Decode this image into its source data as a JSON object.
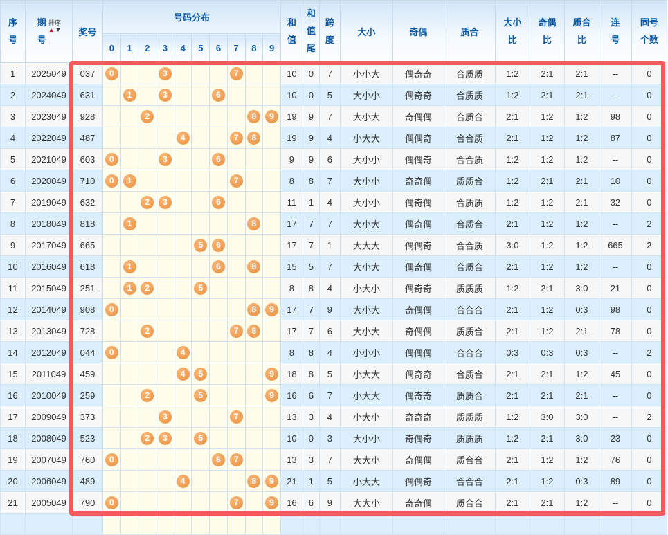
{
  "header": {
    "col_xuhao": "序号",
    "col_qihao": "期号",
    "sort_label": "排序",
    "sort_asc": "▲",
    "sort_desc": "▼",
    "col_jianghao": "奖号",
    "col_distribution": "号码分布",
    "digits": [
      "0",
      "1",
      "2",
      "3",
      "4",
      "5",
      "6",
      "7",
      "8",
      "9"
    ],
    "col_hezhi": "和值",
    "col_hezhiwei": "和值尾",
    "col_kuadu": "跨度",
    "col_daxiao": "大小",
    "col_jiou": "奇偶",
    "col_zhihe": "质合",
    "col_daxiaobi": "大小比",
    "col_jioubi": "奇偶比",
    "col_zhihebi": "质合比",
    "col_lianhao": "连号",
    "col_tonghao": "同号个数"
  },
  "colors": {
    "header_text": "#0c5ba6",
    "ball": "#f2a158",
    "distribution_bg": "#fffde9",
    "row_alt_bg": "#dbeefb",
    "row_plain_bg": "#f7f7f7",
    "red_box": "#f15b5b",
    "sort_asc_arrow": "#c1272d",
    "sort_desc_arrow": "#3a3a3a"
  },
  "rows": [
    {
      "seq": "1",
      "period": "2025049",
      "number": "037",
      "balls": [
        0,
        3,
        7
      ],
      "sum": "10",
      "sum_tail": "0",
      "span": "7",
      "daxiao": "小小大",
      "jiou": "偶奇奇",
      "zhihe": "合质质",
      "dx_ratio": "1:2",
      "jo_ratio": "2:1",
      "zh_ratio": "2:1",
      "lianhao": "--",
      "tonghao": "0"
    },
    {
      "seq": "2",
      "period": "2024049",
      "number": "631",
      "balls": [
        1,
        3,
        6
      ],
      "sum": "10",
      "sum_tail": "0",
      "span": "5",
      "daxiao": "大小小",
      "jiou": "偶奇奇",
      "zhihe": "合质质",
      "dx_ratio": "1:2",
      "jo_ratio": "2:1",
      "zh_ratio": "2:1",
      "lianhao": "--",
      "tonghao": "0"
    },
    {
      "seq": "3",
      "period": "2023049",
      "number": "928",
      "balls": [
        2,
        8,
        9
      ],
      "sum": "19",
      "sum_tail": "9",
      "span": "7",
      "daxiao": "大小大",
      "jiou": "奇偶偶",
      "zhihe": "合质合",
      "dx_ratio": "2:1",
      "jo_ratio": "1:2",
      "zh_ratio": "1:2",
      "lianhao": "98",
      "tonghao": "0"
    },
    {
      "seq": "4",
      "period": "2022049",
      "number": "487",
      "balls": [
        4,
        7,
        8
      ],
      "sum": "19",
      "sum_tail": "9",
      "span": "4",
      "daxiao": "小大大",
      "jiou": "偶偶奇",
      "zhihe": "合合质",
      "dx_ratio": "2:1",
      "jo_ratio": "1:2",
      "zh_ratio": "1:2",
      "lianhao": "87",
      "tonghao": "0"
    },
    {
      "seq": "5",
      "period": "2021049",
      "number": "603",
      "balls": [
        0,
        3,
        6
      ],
      "sum": "9",
      "sum_tail": "9",
      "span": "6",
      "daxiao": "大小小",
      "jiou": "偶偶奇",
      "zhihe": "合合质",
      "dx_ratio": "1:2",
      "jo_ratio": "1:2",
      "zh_ratio": "1:2",
      "lianhao": "--",
      "tonghao": "0"
    },
    {
      "seq": "6",
      "period": "2020049",
      "number": "710",
      "balls": [
        0,
        1,
        7
      ],
      "sum": "8",
      "sum_tail": "8",
      "span": "7",
      "daxiao": "大小小",
      "jiou": "奇奇偶",
      "zhihe": "质质合",
      "dx_ratio": "1:2",
      "jo_ratio": "2:1",
      "zh_ratio": "2:1",
      "lianhao": "10",
      "tonghao": "0"
    },
    {
      "seq": "7",
      "period": "2019049",
      "number": "632",
      "balls": [
        2,
        3,
        6
      ],
      "sum": "11",
      "sum_tail": "1",
      "span": "4",
      "daxiao": "大小小",
      "jiou": "偶奇偶",
      "zhihe": "合质质",
      "dx_ratio": "1:2",
      "jo_ratio": "1:2",
      "zh_ratio": "2:1",
      "lianhao": "32",
      "tonghao": "0"
    },
    {
      "seq": "8",
      "period": "2018049",
      "number": "818",
      "balls": [
        1,
        8
      ],
      "sum": "17",
      "sum_tail": "7",
      "span": "7",
      "daxiao": "大小大",
      "jiou": "偶奇偶",
      "zhihe": "合质合",
      "dx_ratio": "2:1",
      "jo_ratio": "1:2",
      "zh_ratio": "1:2",
      "lianhao": "--",
      "tonghao": "2"
    },
    {
      "seq": "9",
      "period": "2017049",
      "number": "665",
      "balls": [
        5,
        6
      ],
      "sum": "17",
      "sum_tail": "7",
      "span": "1",
      "daxiao": "大大大",
      "jiou": "偶偶奇",
      "zhihe": "合合质",
      "dx_ratio": "3:0",
      "jo_ratio": "1:2",
      "zh_ratio": "1:2",
      "lianhao": "665",
      "tonghao": "2"
    },
    {
      "seq": "10",
      "period": "2016049",
      "number": "618",
      "balls": [
        1,
        6,
        8
      ],
      "sum": "15",
      "sum_tail": "5",
      "span": "7",
      "daxiao": "大小大",
      "jiou": "偶奇偶",
      "zhihe": "合质合",
      "dx_ratio": "2:1",
      "jo_ratio": "1:2",
      "zh_ratio": "1:2",
      "lianhao": "--",
      "tonghao": "0"
    },
    {
      "seq": "11",
      "period": "2015049",
      "number": "251",
      "balls": [
        1,
        2,
        5
      ],
      "sum": "8",
      "sum_tail": "8",
      "span": "4",
      "daxiao": "小大小",
      "jiou": "偶奇奇",
      "zhihe": "质质质",
      "dx_ratio": "1:2",
      "jo_ratio": "2:1",
      "zh_ratio": "3:0",
      "lianhao": "21",
      "tonghao": "0"
    },
    {
      "seq": "12",
      "period": "2014049",
      "number": "908",
      "balls": [
        0,
        8,
        9
      ],
      "sum": "17",
      "sum_tail": "7",
      "span": "9",
      "daxiao": "大小大",
      "jiou": "奇偶偶",
      "zhihe": "合合合",
      "dx_ratio": "2:1",
      "jo_ratio": "1:2",
      "zh_ratio": "0:3",
      "lianhao": "98",
      "tonghao": "0"
    },
    {
      "seq": "13",
      "period": "2013049",
      "number": "728",
      "balls": [
        2,
        7,
        8
      ],
      "sum": "17",
      "sum_tail": "7",
      "span": "6",
      "daxiao": "大小大",
      "jiou": "奇偶偶",
      "zhihe": "质质合",
      "dx_ratio": "2:1",
      "jo_ratio": "1:2",
      "zh_ratio": "2:1",
      "lianhao": "78",
      "tonghao": "0"
    },
    {
      "seq": "14",
      "period": "2012049",
      "number": "044",
      "balls": [
        0,
        4
      ],
      "sum": "8",
      "sum_tail": "8",
      "span": "4",
      "daxiao": "小小小",
      "jiou": "偶偶偶",
      "zhihe": "合合合",
      "dx_ratio": "0:3",
      "jo_ratio": "0:3",
      "zh_ratio": "0:3",
      "lianhao": "--",
      "tonghao": "2"
    },
    {
      "seq": "15",
      "period": "2011049",
      "number": "459",
      "balls": [
        4,
        5,
        9
      ],
      "sum": "18",
      "sum_tail": "8",
      "span": "5",
      "daxiao": "小大大",
      "jiou": "偶奇奇",
      "zhihe": "合质合",
      "dx_ratio": "2:1",
      "jo_ratio": "2:1",
      "zh_ratio": "1:2",
      "lianhao": "45",
      "tonghao": "0"
    },
    {
      "seq": "16",
      "period": "2010049",
      "number": "259",
      "balls": [
        2,
        5,
        9
      ],
      "sum": "16",
      "sum_tail": "6",
      "span": "7",
      "daxiao": "小大大",
      "jiou": "偶奇奇",
      "zhihe": "质质合",
      "dx_ratio": "2:1",
      "jo_ratio": "2:1",
      "zh_ratio": "2:1",
      "lianhao": "--",
      "tonghao": "0"
    },
    {
      "seq": "17",
      "period": "2009049",
      "number": "373",
      "balls": [
        3,
        7
      ],
      "sum": "13",
      "sum_tail": "3",
      "span": "4",
      "daxiao": "小大小",
      "jiou": "奇奇奇",
      "zhihe": "质质质",
      "dx_ratio": "1:2",
      "jo_ratio": "3:0",
      "zh_ratio": "3:0",
      "lianhao": "--",
      "tonghao": "2"
    },
    {
      "seq": "18",
      "period": "2008049",
      "number": "523",
      "balls": [
        2,
        3,
        5
      ],
      "sum": "10",
      "sum_tail": "0",
      "span": "3",
      "daxiao": "大小小",
      "jiou": "奇偶奇",
      "zhihe": "质质质",
      "dx_ratio": "1:2",
      "jo_ratio": "2:1",
      "zh_ratio": "3:0",
      "lianhao": "23",
      "tonghao": "0"
    },
    {
      "seq": "19",
      "period": "2007049",
      "number": "760",
      "balls": [
        0,
        6,
        7
      ],
      "sum": "13",
      "sum_tail": "3",
      "span": "7",
      "daxiao": "大大小",
      "jiou": "奇偶偶",
      "zhihe": "质合合",
      "dx_ratio": "2:1",
      "jo_ratio": "1:2",
      "zh_ratio": "1:2",
      "lianhao": "76",
      "tonghao": "0"
    },
    {
      "seq": "20",
      "period": "2006049",
      "number": "489",
      "balls": [
        4,
        8,
        9
      ],
      "sum": "21",
      "sum_tail": "1",
      "span": "5",
      "daxiao": "小大大",
      "jiou": "偶偶奇",
      "zhihe": "合合合",
      "dx_ratio": "2:1",
      "jo_ratio": "1:2",
      "zh_ratio": "0:3",
      "lianhao": "89",
      "tonghao": "0"
    },
    {
      "seq": "21",
      "period": "2005049",
      "number": "790",
      "balls": [
        0,
        7,
        9
      ],
      "sum": "16",
      "sum_tail": "6",
      "span": "9",
      "daxiao": "大大小",
      "jiou": "奇奇偶",
      "zhihe": "质合合",
      "dx_ratio": "2:1",
      "jo_ratio": "2:1",
      "zh_ratio": "1:2",
      "lianhao": "--",
      "tonghao": "0"
    }
  ]
}
